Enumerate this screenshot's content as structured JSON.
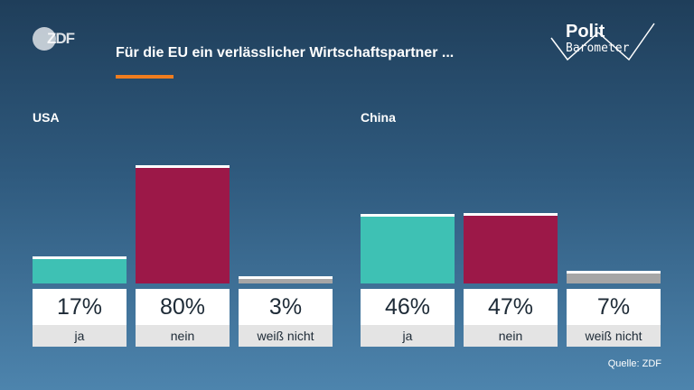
{
  "header": {
    "logo_text": "ZDF",
    "title": "Für die EU ein verlässlicher Wirtschaftspartner ...",
    "accent_color": "#f07d1f",
    "brand": {
      "line1": "Polit",
      "line2": "Barometer"
    }
  },
  "colors": {
    "ja": "#3ec1b4",
    "nein": "#9c1848",
    "weiss_nicht": "#a6a6a6"
  },
  "chart_data": {
    "type": "bar",
    "title": "Für die EU ein verlässlicher Wirtschaftspartner ...",
    "categories": [
      "ja",
      "nein",
      "weiß nicht"
    ],
    "ylim": [
      0,
      100
    ],
    "unit": "%",
    "groups": [
      {
        "name": "USA",
        "values": [
          17,
          80,
          3
        ],
        "labels": [
          "17%",
          "80%",
          "3%"
        ]
      },
      {
        "name": "China",
        "values": [
          46,
          47,
          7
        ],
        "labels": [
          "46%",
          "47%",
          "7%"
        ]
      }
    ]
  },
  "footer": {
    "source": "Quelle: ZDF"
  }
}
